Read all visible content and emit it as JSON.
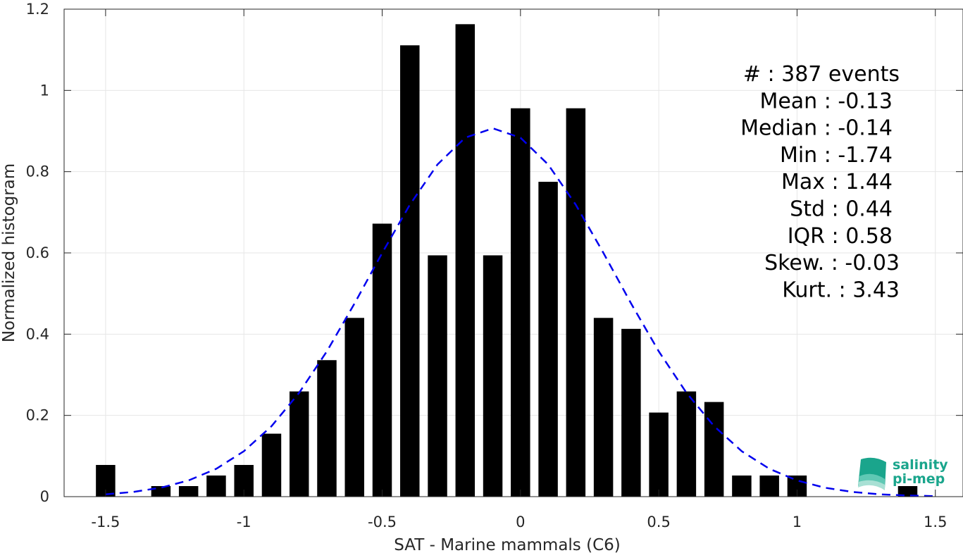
{
  "chart_data": {
    "type": "bar",
    "xlabel": "SAT - Marine mammals (C6)",
    "ylabel": "Normalized histogram",
    "xlim": [
      -1.65,
      1.6
    ],
    "ylim": [
      0,
      1.2
    ],
    "xticks": [
      -1.5,
      -1,
      -0.5,
      0,
      0.5,
      1,
      1.5
    ],
    "xtick_labels": [
      "-1.5",
      "-1",
      "-0.5",
      "0",
      "0.5",
      "1",
      "1.5"
    ],
    "yticks": [
      0,
      0.2,
      0.4,
      0.6,
      0.8,
      1,
      1.2
    ],
    "ytick_labels": [
      "0",
      "0.2",
      "0.4",
      "0.6",
      "0.8",
      "1",
      "1.2"
    ],
    "grid": true,
    "bar_width": 0.07,
    "bar_color": "#000000",
    "bins": [
      {
        "x": -1.5,
        "y": 0.078
      },
      {
        "x": -1.3,
        "y": 0.026
      },
      {
        "x": -1.2,
        "y": 0.026
      },
      {
        "x": -1.1,
        "y": 0.052
      },
      {
        "x": -1.0,
        "y": 0.078
      },
      {
        "x": -0.9,
        "y": 0.155
      },
      {
        "x": -0.8,
        "y": 0.259
      },
      {
        "x": -0.7,
        "y": 0.336
      },
      {
        "x": -0.6,
        "y": 0.44
      },
      {
        "x": -0.5,
        "y": 0.672
      },
      {
        "x": -0.4,
        "y": 1.111
      },
      {
        "x": -0.3,
        "y": 0.594
      },
      {
        "x": -0.2,
        "y": 1.163
      },
      {
        "x": -0.1,
        "y": 0.594
      },
      {
        "x": 0.0,
        "y": 0.956
      },
      {
        "x": 0.1,
        "y": 0.775
      },
      {
        "x": 0.2,
        "y": 0.956
      },
      {
        "x": 0.3,
        "y": 0.44
      },
      {
        "x": 0.4,
        "y": 0.413
      },
      {
        "x": 0.5,
        "y": 0.207
      },
      {
        "x": 0.6,
        "y": 0.259
      },
      {
        "x": 0.7,
        "y": 0.233
      },
      {
        "x": 0.8,
        "y": 0.052
      },
      {
        "x": 0.9,
        "y": 0.052
      },
      {
        "x": 1.0,
        "y": 0.052
      },
      {
        "x": 1.4,
        "y": 0.026
      }
    ],
    "fit_curve": {
      "color": "#0000ee",
      "style": "dashed",
      "mean": -0.1,
      "std": 0.44,
      "x_range": [
        -1.5,
        1.5
      ],
      "samples": 31
    }
  },
  "stats": [
    {
      "text": "#  : 387 events"
    },
    {
      "text": "Mean : -0.13"
    },
    {
      "text": "Median : -0.14"
    },
    {
      "text": "Min : -1.74"
    },
    {
      "text": "Max : 1.44"
    },
    {
      "text": "Std : 0.44"
    },
    {
      "text": "IQR : 0.58"
    },
    {
      "text": "Skew. : -0.03"
    },
    {
      "text": "Kurt. : 3.43"
    }
  ],
  "logo": {
    "line1": "salinity",
    "line2": "pi-mep",
    "colors": [
      "#1aa58c",
      "#5fc8b4",
      "#a8e0d4"
    ]
  }
}
